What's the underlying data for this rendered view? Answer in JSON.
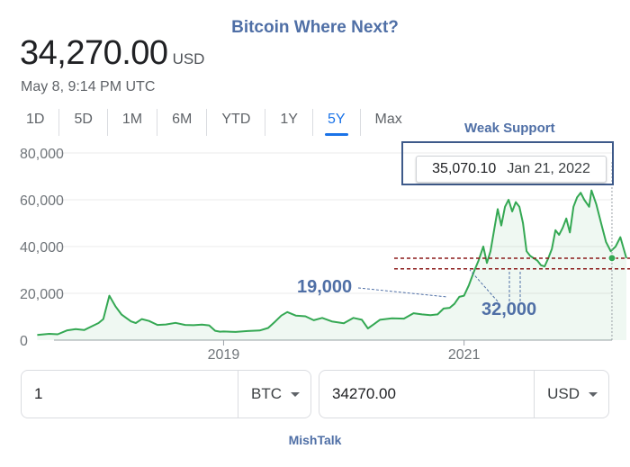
{
  "title": "Bitcoin Where Next?",
  "price": {
    "value": "34,270.00",
    "currency": "USD",
    "timestamp": "May 8, 9:14 PM UTC"
  },
  "tabs": [
    {
      "label": "1D",
      "active": false
    },
    {
      "label": "5D",
      "active": false
    },
    {
      "label": "1M",
      "active": false
    },
    {
      "label": "6M",
      "active": false
    },
    {
      "label": "YTD",
      "active": false
    },
    {
      "label": "1Y",
      "active": false
    },
    {
      "label": "5Y",
      "active": true
    },
    {
      "label": "Max",
      "active": false
    }
  ],
  "tooltip": {
    "value": "35,070.10",
    "date": "Jan 21, 2022"
  },
  "annotations": {
    "weak_support": "Weak Support",
    "low": "19,000",
    "support": "32,000"
  },
  "converter": {
    "from": {
      "value": "1",
      "unit": "BTC"
    },
    "to": {
      "value": "34270.00",
      "unit": "USD"
    }
  },
  "footer": "MishTalk",
  "colors": {
    "line": "#34a853",
    "accent": "#1a73e8",
    "annotation": "#4f6fa6",
    "support_line": "#8b1a1a"
  },
  "chart_data": {
    "type": "area",
    "ylim": [
      0,
      80000
    ],
    "yticks": [
      "0",
      "20,000",
      "40,000",
      "60,000",
      "80,000"
    ],
    "ytick_values": [
      0,
      20000,
      40000,
      60000,
      80000
    ],
    "xticks": [
      "2019",
      "2021"
    ],
    "xtick_values": [
      2019.0,
      2021.0
    ],
    "xlim": [
      2017.35,
      2022.38
    ],
    "grid": true,
    "support_levels": [
      35000,
      30500
    ],
    "series": [
      {
        "x": [
          2017.45,
          2017.55,
          2017.62,
          2017.7,
          2017.77,
          2017.84,
          2017.9,
          2017.96,
          2018.0,
          2018.05,
          2018.1,
          2018.15,
          2018.19,
          2018.23,
          2018.27,
          2018.32,
          2018.38,
          2018.45,
          2018.52,
          2018.6,
          2018.68,
          2018.75,
          2018.82,
          2018.88,
          2018.93,
          2018.97,
          2019.0,
          2019.1,
          2019.2,
          2019.3,
          2019.37,
          2019.43,
          2019.48,
          2019.53,
          2019.6,
          2019.68,
          2019.75,
          2019.82,
          2019.9,
          2020.0,
          2020.08,
          2020.15,
          2020.2,
          2020.25,
          2020.3,
          2020.4,
          2020.5,
          2020.58,
          2020.65,
          2020.72,
          2020.78,
          2020.83,
          2020.88,
          2020.92,
          2020.96,
          2021.0,
          2021.04,
          2021.08,
          2021.12,
          2021.16,
          2021.19,
          2021.22,
          2021.25,
          2021.28,
          2021.31,
          2021.34,
          2021.37,
          2021.4,
          2021.43,
          2021.46,
          2021.49,
          2021.52,
          2021.55,
          2021.58,
          2021.61,
          2021.64,
          2021.67,
          2021.7,
          2021.73,
          2021.76,
          2021.79,
          2021.82,
          2021.85,
          2021.88,
          2021.91,
          2021.94,
          2021.97,
          2022.0,
          2022.04,
          2022.06,
          2022.1,
          2022.14,
          2022.18,
          2022.22,
          2022.26,
          2022.3,
          2022.35
        ],
        "y": [
          2200,
          2700,
          2500,
          4200,
          4700,
          4300,
          5800,
          7300,
          9000,
          19000,
          14500,
          11000,
          9500,
          8000,
          7300,
          9000,
          8200,
          6500,
          6700,
          7400,
          6500,
          6400,
          6600,
          6300,
          4000,
          3600,
          3700,
          3500,
          3900,
          4100,
          5200,
          8000,
          10500,
          12000,
          10500,
          10200,
          8500,
          9500,
          8000,
          7200,
          9500,
          8700,
          5000,
          6800,
          8700,
          9300,
          9200,
          11500,
          11000,
          10700,
          11000,
          13500,
          13800,
          15500,
          18500,
          19000,
          23500,
          29000,
          34000,
          40000,
          33000,
          38000,
          47000,
          56000,
          49000,
          57000,
          60000,
          55000,
          59000,
          57000,
          50000,
          38000,
          36000,
          35000,
          34000,
          32000,
          31500,
          35000,
          39000,
          47000,
          45000,
          48000,
          52000,
          46000,
          57000,
          61000,
          63000,
          60000,
          57000,
          64000,
          58000,
          50000,
          42000,
          38000,
          40000,
          44000,
          35000
        ]
      }
    ]
  }
}
